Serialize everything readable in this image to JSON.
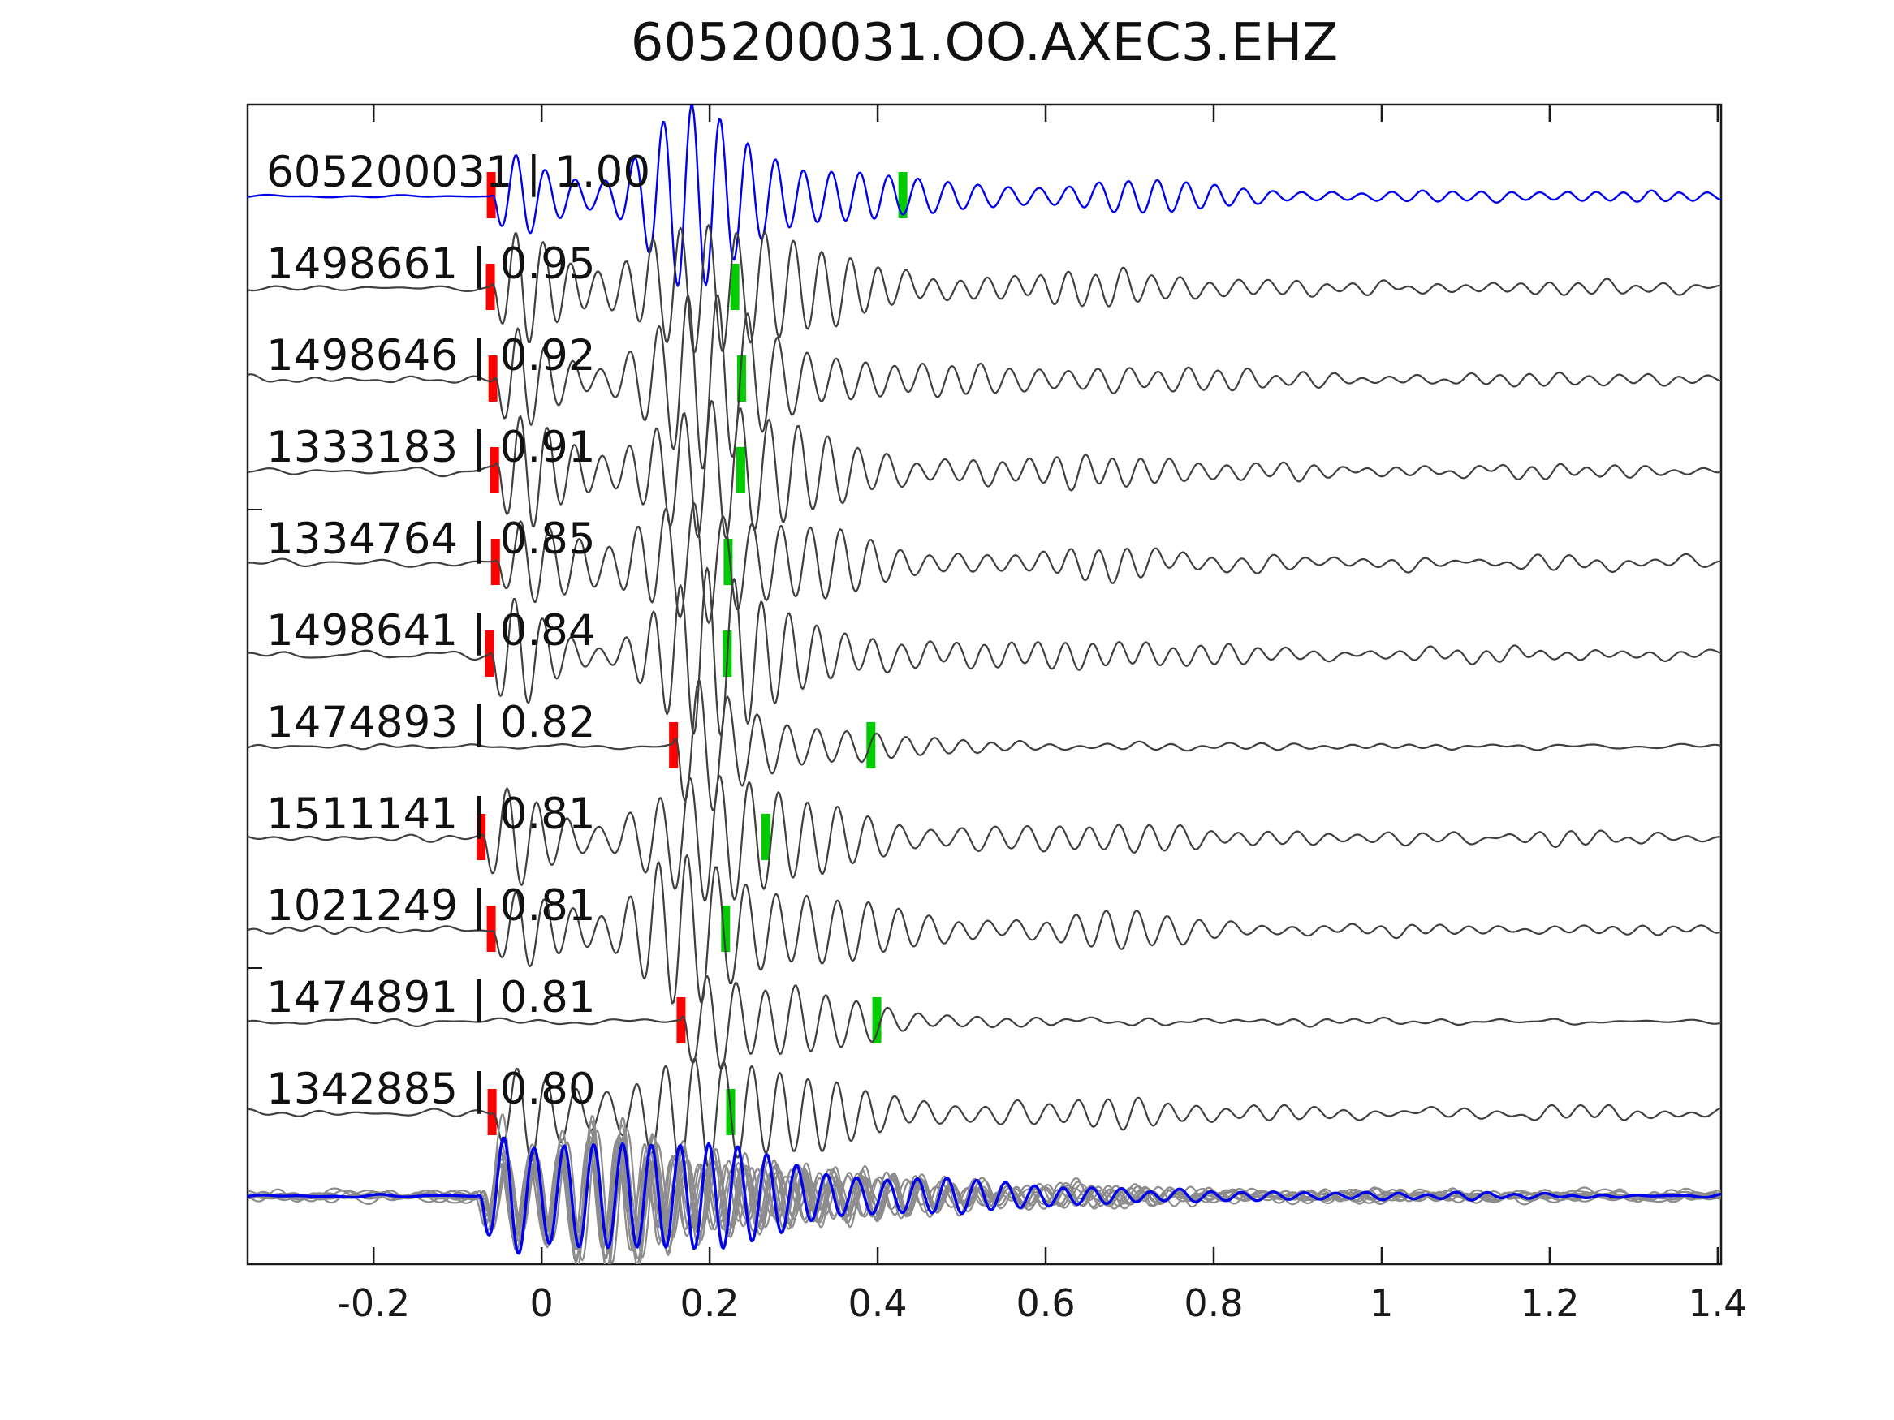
{
  "chart_data": {
    "type": "line",
    "title": "605200031.OO.AXEC3.EHZ",
    "xlabel": "",
    "ylabel": "",
    "x_range": [
      -0.35,
      1.404
    ],
    "grid": false,
    "legend": "none",
    "x_ticks": {
      "values": [
        -0.2,
        0,
        0.2,
        0.4,
        0.6,
        0.8,
        1,
        1.2,
        1.4
      ],
      "labels": [
        "-0.2",
        "0",
        "0.2",
        "0.4",
        "0.6",
        "0.8",
        "1",
        "1.2",
        "1.4"
      ]
    },
    "colors": {
      "template_blue": "#0000ee",
      "trace_gray": "#3f3f3f",
      "pick_red": "#ff0000",
      "pick_green": "#00cc00",
      "stack_gray": "#8c8c8c",
      "stack_blue": "#0000ee",
      "axis_black": "#1a1a1a"
    },
    "traces": [
      {
        "id": "605200031",
        "corr": "1.00",
        "label": "605200031 | 1.00",
        "role": "template",
        "red_pick": -0.06,
        "green_pick": 0.43,
        "onset": -0.06,
        "profile": "early",
        "amp": 58,
        "noise": 1.4,
        "seed": 101
      },
      {
        "id": "1498661",
        "corr": "0.95",
        "label": "1498661 | 0.95",
        "role": "detection",
        "red_pick": -0.061,
        "green_pick": 0.23,
        "onset": -0.061,
        "profile": "early",
        "amp": 60,
        "noise": 4.0,
        "seed": 202
      },
      {
        "id": "1498646",
        "corr": "0.92",
        "label": "1498646 | 0.92",
        "role": "detection",
        "red_pick": -0.058,
        "green_pick": 0.238,
        "onset": -0.058,
        "profile": "early",
        "amp": 56,
        "noise": 4.5,
        "seed": 303
      },
      {
        "id": "1333183",
        "corr": "0.91",
        "label": "1333183 | 0.91",
        "role": "detection",
        "red_pick": -0.056,
        "green_pick": 0.237,
        "onset": -0.056,
        "profile": "early",
        "amp": 58,
        "noise": 4.5,
        "seed": 404
      },
      {
        "id": "1334764",
        "corr": "0.85",
        "label": "1334764 | 0.85",
        "role": "detection",
        "red_pick": -0.055,
        "green_pick": 0.222,
        "onset": -0.055,
        "profile": "early",
        "amp": 52,
        "noise": 6.0,
        "seed": 505
      },
      {
        "id": "1498641",
        "corr": "0.84",
        "label": "1498641 | 0.84",
        "role": "detection",
        "red_pick": -0.062,
        "green_pick": 0.221,
        "onset": -0.062,
        "profile": "early",
        "amp": 55,
        "noise": 5.0,
        "seed": 606
      },
      {
        "id": "1474893",
        "corr": "0.82",
        "label": "1474893 | 0.82",
        "role": "detection",
        "red_pick": 0.157,
        "green_pick": 0.392,
        "onset": 0.157,
        "profile": "late",
        "amp": 55,
        "noise": 3.0,
        "seed": 707
      },
      {
        "id": "1511141",
        "corr": "0.81",
        "label": "1511141 | 0.81",
        "role": "detection",
        "red_pick": -0.072,
        "green_pick": 0.267,
        "onset": -0.072,
        "profile": "early",
        "amp": 54,
        "noise": 4.5,
        "seed": 808
      },
      {
        "id": "1021249",
        "corr": "0.81",
        "label": "1021249 | 0.81",
        "role": "detection",
        "red_pick": -0.06,
        "green_pick": 0.219,
        "onset": -0.06,
        "profile": "early",
        "amp": 56,
        "noise": 4.0,
        "seed": 909
      },
      {
        "id": "1474891",
        "corr": "0.81",
        "label": "1474891 | 0.81",
        "role": "detection",
        "red_pick": 0.166,
        "green_pick": 0.399,
        "onset": 0.166,
        "profile": "late",
        "amp": 57,
        "noise": 3.5,
        "seed": 1010
      },
      {
        "id": "1342885",
        "corr": "0.80",
        "label": "1342885 | 0.80",
        "role": "detection",
        "red_pick": -0.059,
        "green_pick": 0.225,
        "onset": -0.059,
        "profile": "early",
        "amp": 52,
        "noise": 5.0,
        "seed": 1111
      }
    ],
    "stack": {
      "count": 10,
      "onset": -0.075,
      "amp": 56,
      "noise": 5,
      "seed": 5000
    }
  }
}
